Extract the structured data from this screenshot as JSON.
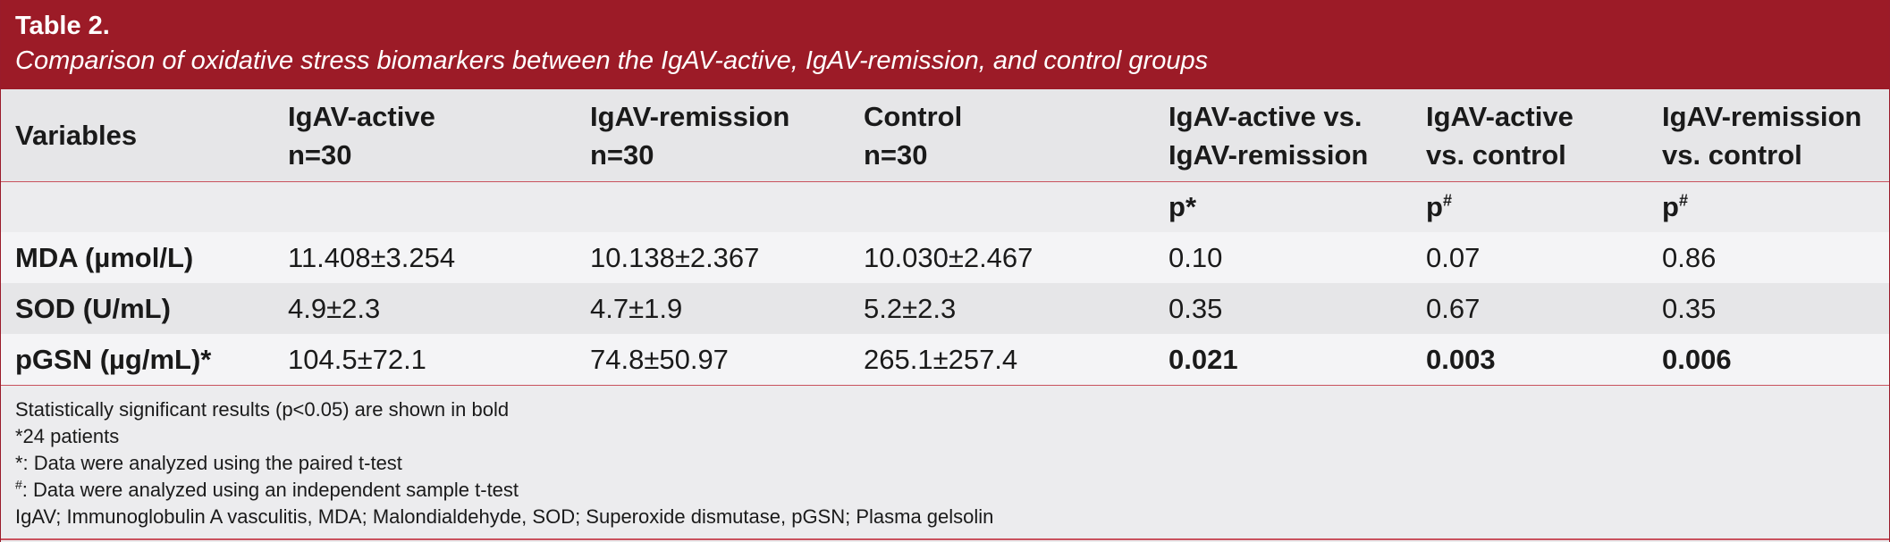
{
  "caption": {
    "label": "Table 2.",
    "title": "Comparison of oxidative stress biomarkers between the IgAV-active, IgAV-remission, and control groups"
  },
  "header": {
    "col0": "Variables",
    "col1": {
      "line1": "IgAV-active",
      "line2": "n=30"
    },
    "col2": {
      "line1": "IgAV-remission",
      "line2": "n=30"
    },
    "col3": {
      "line1": "Control",
      "line2": "n=30"
    },
    "col4": {
      "line1": "IgAV-active vs.",
      "line2": "IgAV-remission"
    },
    "col5": {
      "line1": "IgAV-active",
      "line2": "vs. control"
    },
    "col6": {
      "line1": "IgAV-remission",
      "line2": "vs. control"
    }
  },
  "subheader": {
    "col4": {
      "base": "p",
      "mark": "*"
    },
    "col5": {
      "base": "p",
      "mark": "#"
    },
    "col6": {
      "base": "p",
      "mark": "#"
    }
  },
  "rows": [
    {
      "variable": "MDA (µmol/L)",
      "active": "11.408±3.254",
      "remission": "10.138±2.367",
      "control": "10.030±2.467",
      "p_active_remission": "0.10",
      "p_active_control": "0.07",
      "p_remission_control": "0.86"
    },
    {
      "variable": "SOD (U/mL)",
      "active": "4.9±2.3",
      "remission": "4.7±1.9",
      "control": "5.2±2.3",
      "p_active_remission": "0.35",
      "p_active_control": "0.67",
      "p_remission_control": "0.35"
    },
    {
      "variable": "pGSN (µg/mL)*",
      "active": "104.5±72.1",
      "remission": "74.8±50.97",
      "control": "265.1±257.4",
      "p_active_remission": "0.021",
      "p_active_control": "0.003",
      "p_remission_control": "0.006"
    }
  ],
  "footnotes": {
    "line1": "Statistically significant results (p<0.05) are shown in bold",
    "line2": "*24 patients",
    "line3": "*: Data were analyzed using the paired t-test",
    "line4_mark": "#",
    "line4_text": ": Data were analyzed using an independent sample t-test",
    "line5": "IgAV; Immunoglobulin A vasculitis, MDA; Malondialdehyde, SOD; Superoxide dismutase, pGSN; Plasma gelsolin"
  },
  "colors": {
    "caption_bg": "#9c1b27",
    "rule": "#c9525e"
  }
}
